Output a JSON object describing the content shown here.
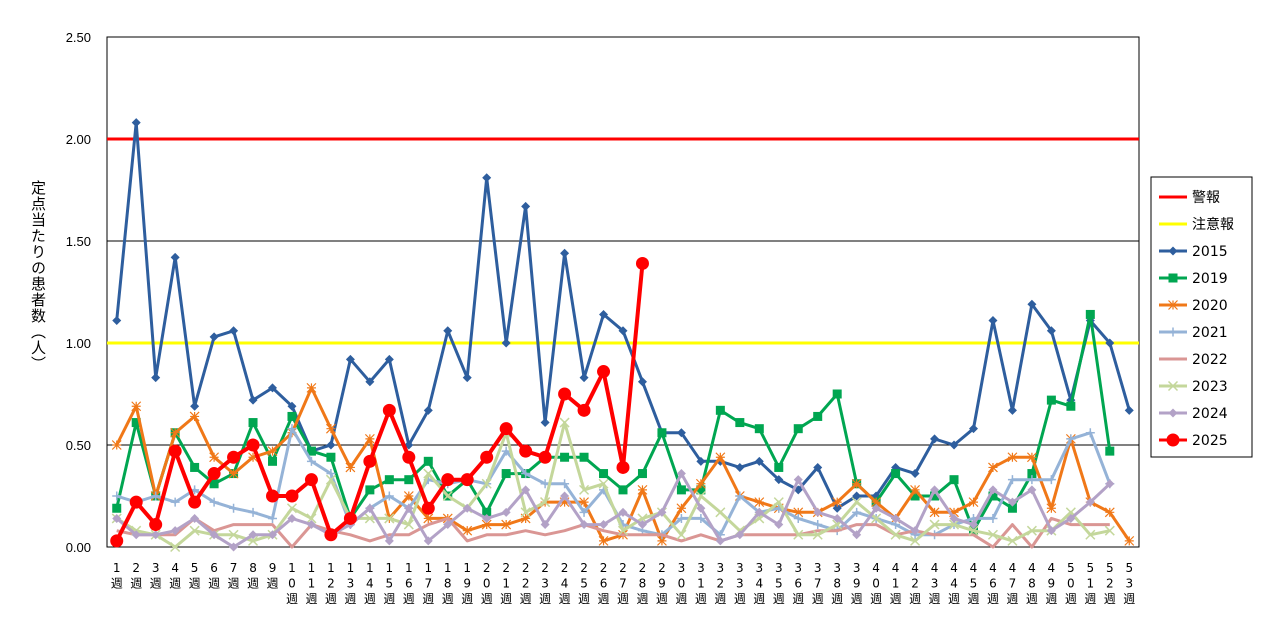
{
  "chart_data": {
    "type": "line",
    "ylabel": "定点当たりの患者数（人）",
    "ylim": [
      0,
      2.5
    ],
    "yticks": [
      "0.00",
      "0.50",
      "1.00",
      "1.50",
      "2.00",
      "2.50"
    ],
    "categories": [
      "1週",
      "2週",
      "3週",
      "4週",
      "5週",
      "6週",
      "7週",
      "8週",
      "9週",
      "10週",
      "11週",
      "12週",
      "13週",
      "14週",
      "15週",
      "16週",
      "17週",
      "18週",
      "19週",
      "20週",
      "21週",
      "22週",
      "23週",
      "24週",
      "25週",
      "26週",
      "27週",
      "28週",
      "29週",
      "30週",
      "31週",
      "32週",
      "33週",
      "34週",
      "35週",
      "36週",
      "37週",
      "38週",
      "39週",
      "40週",
      "41週",
      "42週",
      "43週",
      "44週",
      "45週",
      "46週",
      "47週",
      "48週",
      "49週",
      "50週",
      "51週",
      "52週",
      "53週"
    ],
    "thresholds": [
      {
        "name": "警報",
        "value": 2.0,
        "color": "#ff0000"
      },
      {
        "name": "注意報",
        "value": 1.0,
        "color": "#ffff00"
      }
    ],
    "series": [
      {
        "name": "2015",
        "color": "#2e5e9e",
        "marker": "diamond",
        "values": [
          1.11,
          2.08,
          0.83,
          1.42,
          0.69,
          1.03,
          1.06,
          0.72,
          0.78,
          0.69,
          0.47,
          0.5,
          0.92,
          0.81,
          0.92,
          0.5,
          0.67,
          1.06,
          0.83,
          1.81,
          1.0,
          1.67,
          0.61,
          1.44,
          0.83,
          1.14,
          1.06,
          0.81,
          0.56,
          0.56,
          0.42,
          0.42,
          0.39,
          0.42,
          0.33,
          0.28,
          0.39,
          0.19,
          0.25,
          0.25,
          0.39,
          0.36,
          0.53,
          0.5,
          0.58,
          1.11,
          0.67,
          1.19,
          1.06,
          0.72,
          1.11,
          1.0,
          0.67
        ]
      },
      {
        "name": "2019",
        "color": "#00a651",
        "marker": "square",
        "values": [
          0.19,
          0.61,
          0.25,
          0.56,
          0.39,
          0.31,
          0.36,
          0.61,
          0.42,
          0.64,
          0.47,
          0.44,
          0.14,
          0.28,
          0.33,
          0.33,
          0.42,
          0.25,
          0.33,
          0.17,
          0.36,
          0.36,
          0.44,
          0.44,
          0.44,
          0.36,
          0.28,
          0.36,
          0.56,
          0.28,
          0.28,
          0.67,
          0.61,
          0.58,
          0.39,
          0.58,
          0.64,
          0.75,
          0.31,
          0.22,
          0.36,
          0.25,
          0.25,
          0.33,
          0.08,
          0.25,
          0.19,
          0.36,
          0.72,
          0.69,
          1.14,
          0.47,
          null
        ]
      },
      {
        "name": "2020",
        "color": "#f07818",
        "marker": "star",
        "values": [
          0.5,
          0.69,
          0.25,
          0.56,
          0.64,
          0.44,
          0.36,
          0.44,
          0.47,
          0.56,
          0.78,
          0.58,
          0.39,
          0.53,
          0.14,
          0.25,
          0.14,
          0.14,
          0.08,
          0.11,
          0.11,
          0.14,
          0.22,
          0.22,
          0.22,
          0.03,
          0.06,
          0.28,
          0.03,
          0.19,
          0.31,
          0.44,
          0.25,
          0.22,
          0.19,
          0.17,
          0.17,
          0.22,
          0.31,
          0.22,
          0.14,
          0.28,
          0.17,
          0.17,
          0.22,
          0.39,
          0.44,
          0.44,
          0.19,
          0.53,
          0.22,
          0.17,
          0.03
        ]
      },
      {
        "name": "2021",
        "color": "#95b3d7",
        "marker": "plus",
        "values": [
          0.25,
          0.22,
          0.25,
          0.22,
          0.28,
          0.22,
          0.19,
          0.17,
          0.14,
          0.58,
          0.42,
          0.36,
          0.11,
          0.19,
          0.25,
          0.19,
          0.33,
          0.31,
          0.33,
          0.31,
          0.47,
          0.36,
          0.31,
          0.31,
          0.17,
          0.28,
          0.11,
          0.08,
          0.06,
          0.14,
          0.14,
          0.06,
          0.25,
          0.17,
          0.19,
          0.14,
          0.11,
          0.08,
          0.17,
          0.14,
          0.11,
          0.06,
          0.06,
          0.11,
          0.14,
          0.14,
          0.33,
          0.33,
          0.33,
          0.53,
          0.56,
          0.31,
          null
        ]
      },
      {
        "name": "2022",
        "color": "#da9694",
        "marker": "none",
        "values": [
          0.08,
          0.06,
          0.06,
          0.06,
          0.14,
          0.08,
          0.11,
          0.11,
          0.11,
          0.0,
          0.11,
          0.08,
          0.06,
          0.03,
          0.06,
          0.06,
          0.11,
          0.14,
          0.03,
          0.06,
          0.06,
          0.08,
          0.06,
          0.08,
          0.11,
          0.08,
          0.06,
          0.06,
          0.06,
          0.03,
          0.06,
          0.03,
          0.06,
          0.06,
          0.06,
          0.06,
          0.08,
          0.08,
          0.11,
          0.11,
          0.06,
          0.08,
          0.06,
          0.06,
          0.06,
          0.0,
          0.11,
          0.0,
          0.14,
          0.11,
          0.11,
          0.11,
          null
        ]
      },
      {
        "name": "2023",
        "color": "#c4d79b",
        "marker": "x",
        "values": [
          0.14,
          0.08,
          0.06,
          0.0,
          0.08,
          0.06,
          0.06,
          0.03,
          0.06,
          0.19,
          0.14,
          0.33,
          0.14,
          0.14,
          0.14,
          0.11,
          0.36,
          0.25,
          0.19,
          0.31,
          0.56,
          0.17,
          0.22,
          0.61,
          0.28,
          0.31,
          0.08,
          0.14,
          0.17,
          0.06,
          0.25,
          0.17,
          0.08,
          0.14,
          0.22,
          0.06,
          0.06,
          0.11,
          0.22,
          0.14,
          0.06,
          0.03,
          0.11,
          0.11,
          0.08,
          0.06,
          0.03,
          0.08,
          0.08,
          0.17,
          0.06,
          0.08,
          null
        ]
      },
      {
        "name": "2024",
        "color": "#b3a2c7",
        "marker": "diamond",
        "values": [
          0.14,
          0.06,
          0.06,
          0.08,
          0.14,
          0.06,
          0.0,
          0.06,
          0.06,
          0.14,
          0.11,
          0.06,
          0.11,
          0.19,
          0.03,
          0.19,
          0.03,
          0.11,
          0.19,
          0.14,
          0.17,
          0.28,
          0.11,
          0.25,
          0.11,
          0.11,
          0.17,
          0.11,
          0.17,
          0.36,
          0.19,
          0.03,
          0.06,
          0.17,
          0.11,
          0.33,
          0.17,
          0.14,
          0.06,
          0.19,
          0.14,
          0.08,
          0.28,
          0.14,
          0.11,
          0.28,
          0.22,
          0.28,
          0.08,
          0.14,
          0.22,
          0.31,
          null
        ]
      },
      {
        "name": "2025",
        "color": "#ff0000",
        "marker": "circle",
        "values": [
          0.03,
          0.22,
          0.11,
          0.47,
          0.22,
          0.36,
          0.44,
          0.5,
          0.25,
          0.25,
          0.33,
          0.06,
          0.14,
          0.42,
          0.67,
          0.44,
          0.19,
          0.33,
          0.33,
          0.44,
          0.58,
          0.47,
          0.44,
          0.75,
          0.67,
          0.86,
          0.39,
          1.39,
          null,
          null,
          null,
          null,
          null,
          null,
          null,
          null,
          null,
          null,
          null,
          null,
          null,
          null,
          null,
          null,
          null,
          null,
          null,
          null,
          null,
          null,
          null,
          null,
          null
        ]
      }
    ],
    "legend_position": "right",
    "grid": "horizontal"
  }
}
